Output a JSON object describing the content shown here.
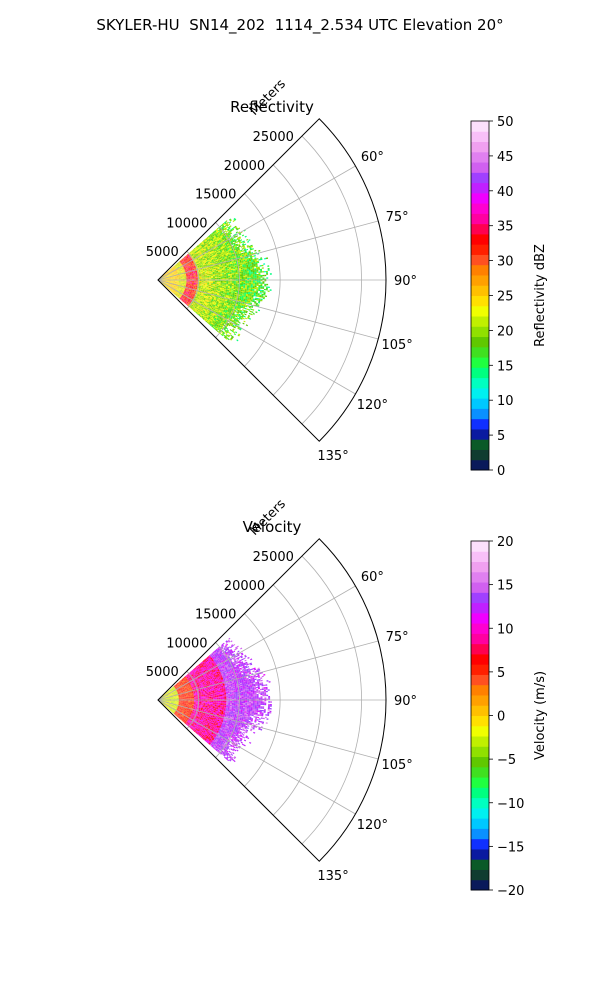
{
  "figure_title": "SKYLER-HU  SN14_202  1114_2.534 UTC Elevation 20°",
  "chart_data": [
    {
      "type": "polar-sector",
      "title": "Reflectivity",
      "radial_axis_label": "Meters",
      "radial_ticks": [
        5000,
        10000,
        15000,
        20000,
        25000
      ],
      "radial_tick_labels": [
        "5000",
        "10000",
        "15000",
        "20000",
        "25000"
      ],
      "rlim": [
        0,
        28000
      ],
      "angle_ticks": [
        60,
        75,
        90,
        105,
        120,
        135
      ],
      "angle_tick_labels": [
        "60°",
        "75°",
        "90°",
        "105°",
        "120°",
        "135°"
      ],
      "theta_range_deg": [
        45,
        135
      ],
      "grid": true,
      "colorbar": {
        "label": "Reflectivity dBZ",
        "range": [
          0,
          50
        ],
        "ticks": [
          0,
          5,
          10,
          15,
          20,
          25,
          30,
          35,
          40,
          45,
          50
        ],
        "tick_labels": [
          "0",
          "5",
          "10",
          "15",
          "20",
          "25",
          "30",
          "35",
          "40",
          "45",
          "50"
        ],
        "colors": [
          "#0a1a5a",
          "#103c30",
          "#0a5a28",
          "#0a1aa0",
          "#1030ff",
          "#0a90ff",
          "#00c8ff",
          "#00f0f0",
          "#00ffc0",
          "#00ff80",
          "#20ff40",
          "#40e020",
          "#60c800",
          "#90e000",
          "#c0f000",
          "#f0ff00",
          "#ffe000",
          "#ffc000",
          "#ffa000",
          "#ff8000",
          "#ff5020",
          "#ff2000",
          "#ff0000",
          "#ff0050",
          "#ff00a0",
          "#ff00d0",
          "#f000ff",
          "#c020ff",
          "#a040ff",
          "#d060f0",
          "#e080f0",
          "#f0a0f0",
          "#f8c0f8",
          "#fce0fc"
        ]
      },
      "data_summary": {
        "echo_range_m": [
          0,
          14000
        ],
        "near_range_dbz": [
          20,
          30
        ],
        "ring_band_range_m": [
          3500,
          5000
        ],
        "ring_band_dbz": 35,
        "far_range_dbz": [
          12,
          20
        ]
      }
    },
    {
      "type": "polar-sector",
      "title": "Velocity",
      "radial_axis_label": "Meters",
      "radial_ticks": [
        5000,
        10000,
        15000,
        20000,
        25000
      ],
      "radial_tick_labels": [
        "5000",
        "10000",
        "15000",
        "20000",
        "25000"
      ],
      "rlim": [
        0,
        28000
      ],
      "angle_ticks": [
        60,
        75,
        90,
        105,
        120,
        135
      ],
      "angle_tick_labels": [
        "60°",
        "75°",
        "90°",
        "105°",
        "120°",
        "135°"
      ],
      "theta_range_deg": [
        45,
        135
      ],
      "grid": true,
      "colorbar": {
        "label": "Velocity (m/s)",
        "range": [
          -20,
          20
        ],
        "ticks": [
          -20,
          -15,
          -10,
          -5,
          0,
          5,
          10,
          15,
          20
        ],
        "tick_labels": [
          "−20",
          "−15",
          "−10",
          "−5",
          "0",
          "5",
          "10",
          "15",
          "20"
        ],
        "colors": [
          "#0a1a5a",
          "#103c30",
          "#0a5a28",
          "#0a1aa0",
          "#1030ff",
          "#0a90ff",
          "#00c8ff",
          "#00f0f0",
          "#00ffc0",
          "#00ff80",
          "#20ff40",
          "#40e020",
          "#60c800",
          "#90e000",
          "#c0f000",
          "#f0ff00",
          "#ffe000",
          "#ffc000",
          "#ffa000",
          "#ff8000",
          "#ff5020",
          "#ff2000",
          "#ff0000",
          "#ff0050",
          "#ff00a0",
          "#ff00d0",
          "#f000ff",
          "#c020ff",
          "#a040ff",
          "#d060f0",
          "#e080f0",
          "#f0a0f0",
          "#f8c0f8",
          "#fce0fc"
        ]
      },
      "data_summary": {
        "echo_range_m": [
          0,
          14000
        ],
        "near_range_ms": [
          -5,
          0
        ],
        "mid_range_ms": [
          5,
          10
        ],
        "far_range_ms": [
          12,
          15
        ]
      }
    }
  ]
}
